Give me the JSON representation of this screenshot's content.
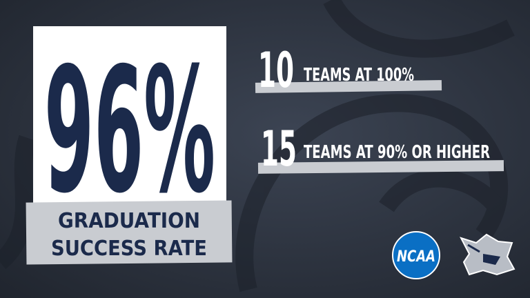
{
  "stat": {
    "value": "96%",
    "label_lines": [
      "GRADUATION",
      "SUCCESS RATE"
    ]
  },
  "facts": [
    {
      "number": "10",
      "text": "TEAMS AT 100%"
    },
    {
      "number": "15",
      "text": "TEAMS AT 90% OR HIGHER"
    }
  ],
  "logos": {
    "ncaa": "NCAA"
  }
}
